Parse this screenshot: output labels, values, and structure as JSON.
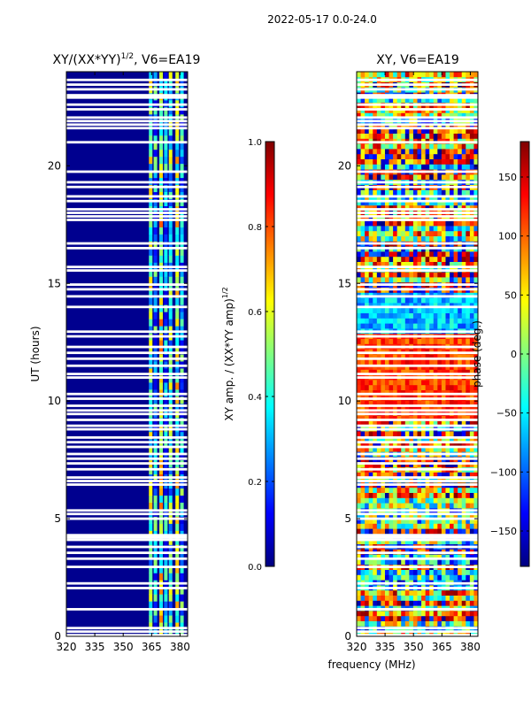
{
  "figure_title": "2022-05-17 0.0-24.0",
  "shared_xlabel": "frequency (MHz)",
  "colors": {
    "panel_background": "#00008f",
    "bad_row": "#ffffff",
    "jet_stops": [
      "#00007f",
      "#0000ff",
      "#0080ff",
      "#00ffff",
      "#80ff80",
      "#ffff00",
      "#ff8000",
      "#ff0000",
      "#7f0000"
    ]
  },
  "chart_data": [
    {
      "type": "heatmap",
      "title_main": "XY/(XX*YY)",
      "title_exp": "1/2",
      "title_tail": ", V6=EA19",
      "xlabel": "",
      "ylabel": "UT (hours)",
      "xlim": [
        320,
        384
      ],
      "ylim": [
        0,
        24
      ],
      "x_ticks": [
        320,
        335,
        350,
        365,
        380
      ],
      "x_tick_labels": [
        "320",
        "335",
        "350",
        "365",
        "380"
      ],
      "y_ticks": [
        0,
        5,
        10,
        15,
        20
      ],
      "y_tick_labels": [
        "0",
        "5",
        "10",
        "15",
        "20"
      ],
      "bright_channel_bands_mhz": [
        {
          "center": 364.5,
          "level": 0.45
        },
        {
          "center": 367.0,
          "level": 0.3
        },
        {
          "center": 370.0,
          "level": 0.55
        },
        {
          "center": 372.5,
          "level": 0.25
        },
        {
          "center": 375.0,
          "level": 0.4
        },
        {
          "center": 378.5,
          "level": 0.5
        },
        {
          "center": 381.0,
          "level": 0.3
        }
      ],
      "colorbar": {
        "label_main": "XY amp. / (XX*YY amp)",
        "label_exp": "1/2",
        "range": [
          0.0,
          1.0
        ],
        "ticks": [
          0.0,
          0.2,
          0.4,
          0.6,
          0.8,
          1.0
        ],
        "tick_labels": [
          "0.0",
          "0.2",
          "0.4",
          "0.6",
          "0.8",
          "1.0"
        ]
      }
    },
    {
      "type": "heatmap",
      "title_main": "XY, V6=EA19",
      "xlabel": "frequency (MHz)",
      "ylabel": "",
      "xlim": [
        320,
        384
      ],
      "ylim": [
        0,
        24
      ],
      "x_ticks": [
        320,
        335,
        350,
        365,
        380
      ],
      "x_tick_labels": [
        "320",
        "335",
        "350",
        "365",
        "380"
      ],
      "y_ticks": [
        0,
        5,
        10,
        15,
        20
      ],
      "y_tick_labels": [
        "0",
        "5",
        "10",
        "15",
        "20"
      ],
      "colorbar": {
        "label": "phase (deg.)",
        "range": [
          -180,
          180
        ],
        "ticks": [
          -150,
          -100,
          -50,
          0,
          50,
          100,
          150
        ],
        "tick_labels": [
          "−150",
          "−100",
          "−50",
          "0",
          "50",
          "100",
          "150"
        ]
      }
    }
  ],
  "flagged_ut_hours": [
    0.05,
    0.2,
    0.35,
    1.15,
    2.05,
    2.25,
    2.95,
    3.3,
    3.55,
    3.8,
    4.1,
    4.2,
    4.3,
    5.0,
    5.2,
    5.35,
    6.45,
    6.6,
    6.75,
    7.1,
    7.35,
    7.55,
    7.75,
    8.05,
    8.25,
    8.45,
    8.8,
    8.95,
    9.2,
    9.45,
    9.6,
    9.8,
    10.1,
    10.3,
    11.0,
    11.15,
    11.5,
    11.8,
    12.05,
    12.3,
    12.75,
    12.95,
    14.0,
    14.45,
    14.75,
    14.95,
    15.55,
    15.7,
    16.5,
    16.7,
    17.7,
    17.85,
    18.0,
    18.15,
    18.5,
    18.7,
    19.1,
    19.3,
    19.75,
    21.0,
    21.6,
    21.75,
    21.9,
    22.05,
    22.4,
    22.6,
    22.9,
    23.0,
    23.25,
    23.45,
    23.65
  ]
}
